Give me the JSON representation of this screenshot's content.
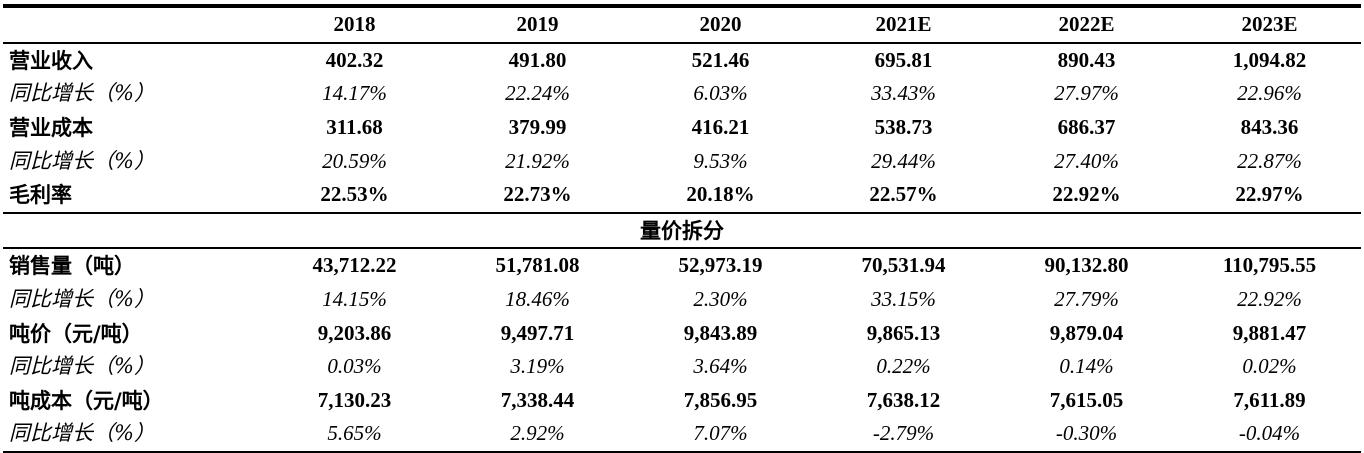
{
  "header": {
    "blank": "",
    "years": [
      "2018",
      "2019",
      "2020",
      "2021E",
      "2022E",
      "2023E"
    ]
  },
  "rows_top": [
    {
      "label": "营业收入",
      "style": "bold",
      "values": [
        "402.32",
        "491.80",
        "521.46",
        "695.81",
        "890.43",
        "1,094.82"
      ]
    },
    {
      "label": "同比增长（%）",
      "style": "ital",
      "values": [
        "14.17%",
        "22.24%",
        "6.03%",
        "33.43%",
        "27.97%",
        "22.96%"
      ]
    },
    {
      "label": "营业成本",
      "style": "bold",
      "values": [
        "311.68",
        "379.99",
        "416.21",
        "538.73",
        "686.37",
        "843.36"
      ]
    },
    {
      "label": "同比增长（%）",
      "style": "ital",
      "values": [
        "20.59%",
        "21.92%",
        "9.53%",
        "29.44%",
        "27.40%",
        "22.87%"
      ]
    },
    {
      "label": "毛利率",
      "style": "bold",
      "values": [
        "22.53%",
        "22.73%",
        "20.18%",
        "22.57%",
        "22.92%",
        "22.97%"
      ]
    }
  ],
  "section_title": "量价拆分",
  "rows_bottom": [
    {
      "label": "销售量（吨）",
      "style": "bold",
      "values": [
        "43,712.22",
        "51,781.08",
        "52,973.19",
        "70,531.94",
        "90,132.80",
        "110,795.55"
      ]
    },
    {
      "label": "同比增长（%）",
      "style": "ital",
      "values": [
        "14.15%",
        "18.46%",
        "2.30%",
        "33.15%",
        "27.79%",
        "22.92%"
      ]
    },
    {
      "label": "吨价（元/吨）",
      "style": "bold",
      "values": [
        "9,203.86",
        "9,497.71",
        "9,843.89",
        "9,865.13",
        "9,879.04",
        "9,881.47"
      ]
    },
    {
      "label": "同比增长（%）",
      "style": "ital",
      "values": [
        "0.03%",
        "3.19%",
        "3.64%",
        "0.22%",
        "0.14%",
        "0.02%"
      ]
    },
    {
      "label": "吨成本（元/吨）",
      "style": "bold",
      "values": [
        "7,130.23",
        "7,338.44",
        "7,856.95",
        "7,638.12",
        "7,615.05",
        "7,611.89"
      ]
    },
    {
      "label": "同比增长（%）",
      "style": "ital",
      "values": [
        "5.65%",
        "2.92%",
        "7.07%",
        "-2.79%",
        "-0.30%",
        "-0.04%"
      ]
    }
  ]
}
